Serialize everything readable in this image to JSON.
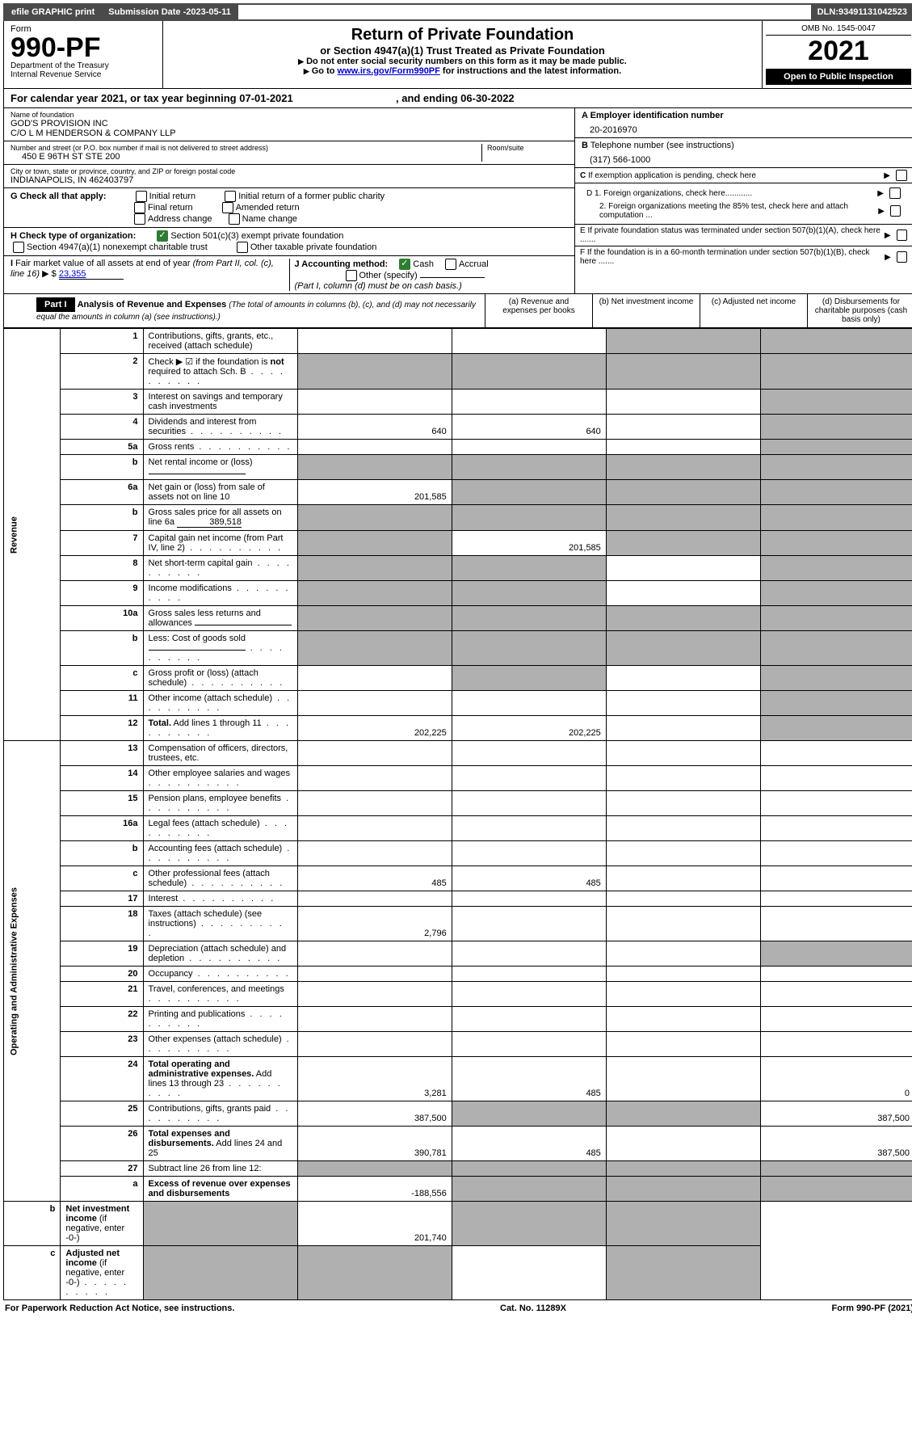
{
  "topbar": {
    "efile": "efile GRAPHIC print",
    "subdate_label": "Submission Date - ",
    "subdate": "2023-05-11",
    "dln_label": "DLN: ",
    "dln": "93491131042523"
  },
  "header": {
    "form_label": "Form",
    "form_num": "990-PF",
    "dept": "Department of the Treasury",
    "irs": "Internal Revenue Service",
    "title": "Return of Private Foundation",
    "subtitle": "or Section 4947(a)(1) Trust Treated as Private Foundation",
    "instr1": "Do not enter social security numbers on this form as it may be made public.",
    "instr2_a": "Go to ",
    "instr2_link": "www.irs.gov/Form990PF",
    "instr2_b": " for instructions and the latest information.",
    "omb": "OMB No. 1545-0047",
    "year": "2021",
    "open": "Open to Public Inspection"
  },
  "calyear": {
    "text_a": "For calendar year 2021, or tax year beginning ",
    "begin": "07-01-2021",
    "text_b": " , and ending ",
    "end": "06-30-2022"
  },
  "entity": {
    "name_label": "Name of foundation",
    "name1": "GOD'S PROVISION INC",
    "name2": "C/O L M HENDERSON & COMPANY LLP",
    "addr_label": "Number and street (or P.O. box number if mail is not delivered to street address)",
    "addr": "450 E 96TH ST STE 200",
    "room_label": "Room/suite",
    "city_label": "City or town, state or province, country, and ZIP or foreign postal code",
    "city": "INDIANAPOLIS, IN  462403797",
    "a_label": "A Employer identification number",
    "a_val": "20-2016970",
    "b_label": "B Telephone number (see instructions)",
    "b_val": "(317) 566-1000",
    "c_label": "C If exemption application is pending, check here",
    "d1": "D 1. Foreign organizations, check here............",
    "d2": "2. Foreign organizations meeting the 85% test, check here and attach computation ...",
    "e": "E  If private foundation status was terminated under section 507(b)(1)(A), check here .......",
    "f": "F  If the foundation is in a 60-month termination under section 507(b)(1)(B), check here .......",
    "g_label": "G Check all that apply:",
    "g_opts": [
      "Initial return",
      "Initial return of a former public charity",
      "Final return",
      "Amended return",
      "Address change",
      "Name change"
    ],
    "h_label": "H Check type of organization:",
    "h1": "Section 501(c)(3) exempt private foundation",
    "h2": "Section 4947(a)(1) nonexempt charitable trust",
    "h3": "Other taxable private foundation",
    "i_label": "I Fair market value of all assets at end of year (from Part II, col. (c), line 16)",
    "i_val": "23,355",
    "j_label": "J Accounting method:",
    "j1": "Cash",
    "j2": "Accrual",
    "j3": "Other (specify)",
    "j_note": "(Part I, column (d) must be on cash basis.)"
  },
  "part1": {
    "label": "Part I",
    "title": "Analysis of Revenue and Expenses",
    "note": "(The total of amounts in columns (b), (c), and (d) may not necessarily equal the amounts in column (a) (see instructions).)",
    "col_a": "(a)   Revenue and expenses per books",
    "col_b": "(b)   Net investment income",
    "col_c": "(c)   Adjusted net income",
    "col_d": "(d)   Disbursements for charitable purposes (cash basis only)"
  },
  "sections": {
    "revenue": "Revenue",
    "expenses": "Operating and Administrative Expenses"
  },
  "rows": [
    {
      "n": "1",
      "d": "Contributions, gifts, grants, etc., received (attach schedule)",
      "a": "",
      "b": "",
      "c": "s",
      "dd": "s"
    },
    {
      "n": "2",
      "d": "Check ▶ ☑ if the foundation is <b>not</b> required to attach Sch. B",
      "dots": true,
      "a": "s",
      "b": "s",
      "c": "s",
      "dd": "s"
    },
    {
      "n": "3",
      "d": "Interest on savings and temporary cash investments",
      "a": "",
      "b": "",
      "c": "",
      "dd": "s"
    },
    {
      "n": "4",
      "d": "Dividends and interest from securities",
      "dots": true,
      "a": "640",
      "b": "640",
      "c": "",
      "dd": "s"
    },
    {
      "n": "5a",
      "d": "Gross rents",
      "dots": true,
      "a": "",
      "b": "",
      "c": "",
      "dd": "s"
    },
    {
      "n": "b",
      "d": "Net rental income or (loss)",
      "inline": true,
      "a": "s",
      "b": "s",
      "c": "s",
      "dd": "s"
    },
    {
      "n": "6a",
      "d": "Net gain or (loss) from sale of assets not on line 10",
      "a": "201,585",
      "b": "s",
      "c": "s",
      "dd": "s"
    },
    {
      "n": "b",
      "d": "Gross sales price for all assets on line 6a",
      "inline": "389,518",
      "a": "s",
      "b": "s",
      "c": "s",
      "dd": "s"
    },
    {
      "n": "7",
      "d": "Capital gain net income (from Part IV, line 2)",
      "dots": true,
      "a": "s",
      "b": "201,585",
      "c": "s",
      "dd": "s"
    },
    {
      "n": "8",
      "d": "Net short-term capital gain",
      "dots": true,
      "a": "s",
      "b": "s",
      "c": "",
      "dd": "s"
    },
    {
      "n": "9",
      "d": "Income modifications",
      "dots": true,
      "a": "s",
      "b": "s",
      "c": "",
      "dd": "s"
    },
    {
      "n": "10a",
      "d": "Gross sales less returns and allowances",
      "inline": true,
      "a": "s",
      "b": "s",
      "c": "s",
      "dd": "s"
    },
    {
      "n": "b",
      "d": "Less: Cost of goods sold",
      "dots": true,
      "inline": true,
      "a": "s",
      "b": "s",
      "c": "s",
      "dd": "s"
    },
    {
      "n": "c",
      "d": "Gross profit or (loss) (attach schedule)",
      "dots": true,
      "a": "",
      "b": "s",
      "c": "",
      "dd": "s"
    },
    {
      "n": "11",
      "d": "Other income (attach schedule)",
      "dots": true,
      "a": "",
      "b": "",
      "c": "",
      "dd": "s"
    },
    {
      "n": "12",
      "d": "<b>Total.</b> Add lines 1 through 11",
      "dots": true,
      "a": "202,225",
      "b": "202,225",
      "c": "",
      "dd": "s"
    },
    {
      "n": "13",
      "d": "Compensation of officers, directors, trustees, etc.",
      "a": "",
      "b": "",
      "c": "",
      "dd": ""
    },
    {
      "n": "14",
      "d": "Other employee salaries and wages",
      "dots": true,
      "a": "",
      "b": "",
      "c": "",
      "dd": ""
    },
    {
      "n": "15",
      "d": "Pension plans, employee benefits",
      "dots": true,
      "a": "",
      "b": "",
      "c": "",
      "dd": ""
    },
    {
      "n": "16a",
      "d": "Legal fees (attach schedule)",
      "dots": true,
      "a": "",
      "b": "",
      "c": "",
      "dd": ""
    },
    {
      "n": "b",
      "d": "Accounting fees (attach schedule)",
      "dots": true,
      "a": "",
      "b": "",
      "c": "",
      "dd": ""
    },
    {
      "n": "c",
      "d": "Other professional fees (attach schedule)",
      "dots": true,
      "a": "485",
      "b": "485",
      "c": "",
      "dd": ""
    },
    {
      "n": "17",
      "d": "Interest",
      "dots": true,
      "a": "",
      "b": "",
      "c": "",
      "dd": ""
    },
    {
      "n": "18",
      "d": "Taxes (attach schedule) (see instructions)",
      "dots": true,
      "a": "2,796",
      "b": "",
      "c": "",
      "dd": ""
    },
    {
      "n": "19",
      "d": "Depreciation (attach schedule) and depletion",
      "dots": true,
      "a": "",
      "b": "",
      "c": "",
      "dd": "s"
    },
    {
      "n": "20",
      "d": "Occupancy",
      "dots": true,
      "a": "",
      "b": "",
      "c": "",
      "dd": ""
    },
    {
      "n": "21",
      "d": "Travel, conferences, and meetings",
      "dots": true,
      "a": "",
      "b": "",
      "c": "",
      "dd": ""
    },
    {
      "n": "22",
      "d": "Printing and publications",
      "dots": true,
      "a": "",
      "b": "",
      "c": "",
      "dd": ""
    },
    {
      "n": "23",
      "d": "Other expenses (attach schedule)",
      "dots": true,
      "a": "",
      "b": "",
      "c": "",
      "dd": ""
    },
    {
      "n": "24",
      "d": "<b>Total operating and administrative expenses.</b> Add lines 13 through 23",
      "dots": true,
      "a": "3,281",
      "b": "485",
      "c": "",
      "dd": "0"
    },
    {
      "n": "25",
      "d": "Contributions, gifts, grants paid",
      "dots": true,
      "a": "387,500",
      "b": "s",
      "c": "s",
      "dd": "387,500"
    },
    {
      "n": "26",
      "d": "<b>Total expenses and disbursements.</b> Add lines 24 and 25",
      "a": "390,781",
      "b": "485",
      "c": "",
      "dd": "387,500"
    },
    {
      "n": "27",
      "d": "Subtract line 26 from line 12:",
      "a": "s",
      "b": "s",
      "c": "s",
      "dd": "s"
    },
    {
      "n": "a",
      "d": "<b>Excess of revenue over expenses and disbursements</b>",
      "a": "-188,556",
      "b": "s",
      "c": "s",
      "dd": "s"
    },
    {
      "n": "b",
      "d": "<b>Net investment income</b> (if negative, enter -0-)",
      "a": "s",
      "b": "201,740",
      "c": "s",
      "dd": "s"
    },
    {
      "n": "c",
      "d": "<b>Adjusted net income</b> (if negative, enter -0-)",
      "dots": true,
      "a": "s",
      "b": "s",
      "c": "",
      "dd": "s"
    }
  ],
  "footer": {
    "pra": "For Paperwork Reduction Act Notice, see instructions.",
    "cat": "Cat. No. 11289X",
    "form": "Form 990-PF (2021)"
  }
}
